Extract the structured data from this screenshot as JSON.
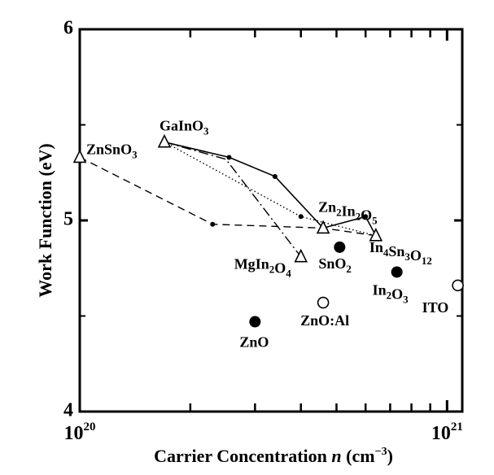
{
  "chart_data": {
    "type": "scatter",
    "xlabel": {
      "prefix": "Carrier Concentration ",
      "var": "n",
      "unit_open": "  (cm",
      "unit_sup": "−3",
      "unit_close": ")"
    },
    "ylabel": "Work Function  (eV)",
    "x_scale": "log",
    "xlim": [
      1e+20,
      1.1e+21
    ],
    "ylim": [
      4,
      6
    ],
    "y_ticks": [
      {
        "value": 4,
        "label": "4"
      },
      {
        "value": 5,
        "label": "5"
      },
      {
        "value": 6,
        "label": "6"
      }
    ],
    "x_ticks": [
      {
        "value": 1e+20,
        "base": "10",
        "exp": "20"
      },
      {
        "value": 1e+21,
        "base": "10",
        "exp": "21"
      }
    ],
    "x_minor_ticks": [
      2e+20,
      3e+20,
      4e+20,
      5e+20,
      6e+20,
      7e+20,
      8e+20,
      9e+20
    ],
    "grid": false,
    "materials": [
      {
        "name": "ZnSnO3",
        "parts": [
          [
            "Zn",
            ""
          ],
          [
            "Sn",
            ""
          ],
          [
            "O",
            "3"
          ]
        ],
        "x": 1e+20,
        "y": 5.33,
        "marker": "triangle-open"
      },
      {
        "name": "GaInO3",
        "parts": [
          [
            "Ga",
            ""
          ],
          [
            "In",
            ""
          ],
          [
            "O",
            "3"
          ]
        ],
        "x": 1.7e+20,
        "y": 5.41,
        "marker": "triangle-open"
      },
      {
        "name": "Zn2In2O5",
        "parts": [
          [
            "Zn",
            "2"
          ],
          [
            "In",
            "2"
          ],
          [
            "O",
            "5"
          ]
        ],
        "x": 4.6e+20,
        "y": 4.96,
        "marker": "triangle-open"
      },
      {
        "name": "MgIn2O4",
        "parts": [
          [
            "Mg",
            ""
          ],
          [
            "In",
            "2"
          ],
          [
            "O",
            "4"
          ]
        ],
        "x": 4e+20,
        "y": 4.81,
        "marker": "triangle-open"
      },
      {
        "name": "In4Sn3O12",
        "parts": [
          [
            "In",
            "4"
          ],
          [
            "Sn",
            "3"
          ],
          [
            "O",
            "12"
          ]
        ],
        "x": 6.4e+20,
        "y": 4.92,
        "marker": "triangle-open"
      },
      {
        "name": "SnO2",
        "parts": [
          [
            "Sn",
            ""
          ],
          [
            "O",
            "2"
          ]
        ],
        "x": 5.1e+20,
        "y": 4.86,
        "marker": "circle-filled"
      },
      {
        "name": "In2O3",
        "parts": [
          [
            "In",
            "2"
          ],
          [
            "O",
            "3"
          ]
        ],
        "x": 7.3e+20,
        "y": 4.73,
        "marker": "circle-filled"
      },
      {
        "name": "ZnO",
        "parts": [
          [
            "ZnO",
            ""
          ]
        ],
        "x": 3e+20,
        "y": 4.47,
        "marker": "circle-filled"
      },
      {
        "name": "ZnO:Al",
        "parts": [
          [
            "ZnO:Al",
            ""
          ]
        ],
        "x": 4.6e+20,
        "y": 4.57,
        "marker": "circle-open"
      },
      {
        "name": "ITO",
        "parts": [
          [
            "ITO",
            ""
          ]
        ],
        "x": 1.07e+21,
        "y": 4.66,
        "marker": "circle-open"
      }
    ],
    "series": [
      {
        "style": "solid",
        "points": [
          [
            1.7e+20,
            5.41
          ],
          [
            2.55e+20,
            5.33
          ],
          [
            3.4e+20,
            5.23
          ],
          [
            4.6e+20,
            4.96
          ],
          [
            6e+20,
            5.02
          ],
          [
            6.4e+20,
            4.92
          ]
        ]
      },
      {
        "style": "dotted",
        "points": [
          [
            1.7e+20,
            5.41
          ],
          [
            4e+20,
            5.02
          ],
          [
            6.4e+20,
            4.92
          ]
        ]
      },
      {
        "style": "dashed",
        "points": [
          [
            1e+20,
            5.33
          ],
          [
            2.3e+20,
            4.98
          ],
          [
            4.6e+20,
            4.96
          ],
          [
            6.4e+20,
            4.92
          ]
        ]
      },
      {
        "style": "dash-dot",
        "points": [
          [
            1.7e+20,
            5.41
          ],
          [
            2.5e+20,
            5.32
          ],
          [
            4e+20,
            4.81
          ]
        ]
      }
    ],
    "small_points": [
      [
        2.55e+20,
        5.33
      ],
      [
        3.4e+20,
        5.23
      ],
      [
        6e+20,
        5.02
      ],
      [
        4e+20,
        5.02
      ],
      [
        2.3e+20,
        4.98
      ]
    ]
  }
}
